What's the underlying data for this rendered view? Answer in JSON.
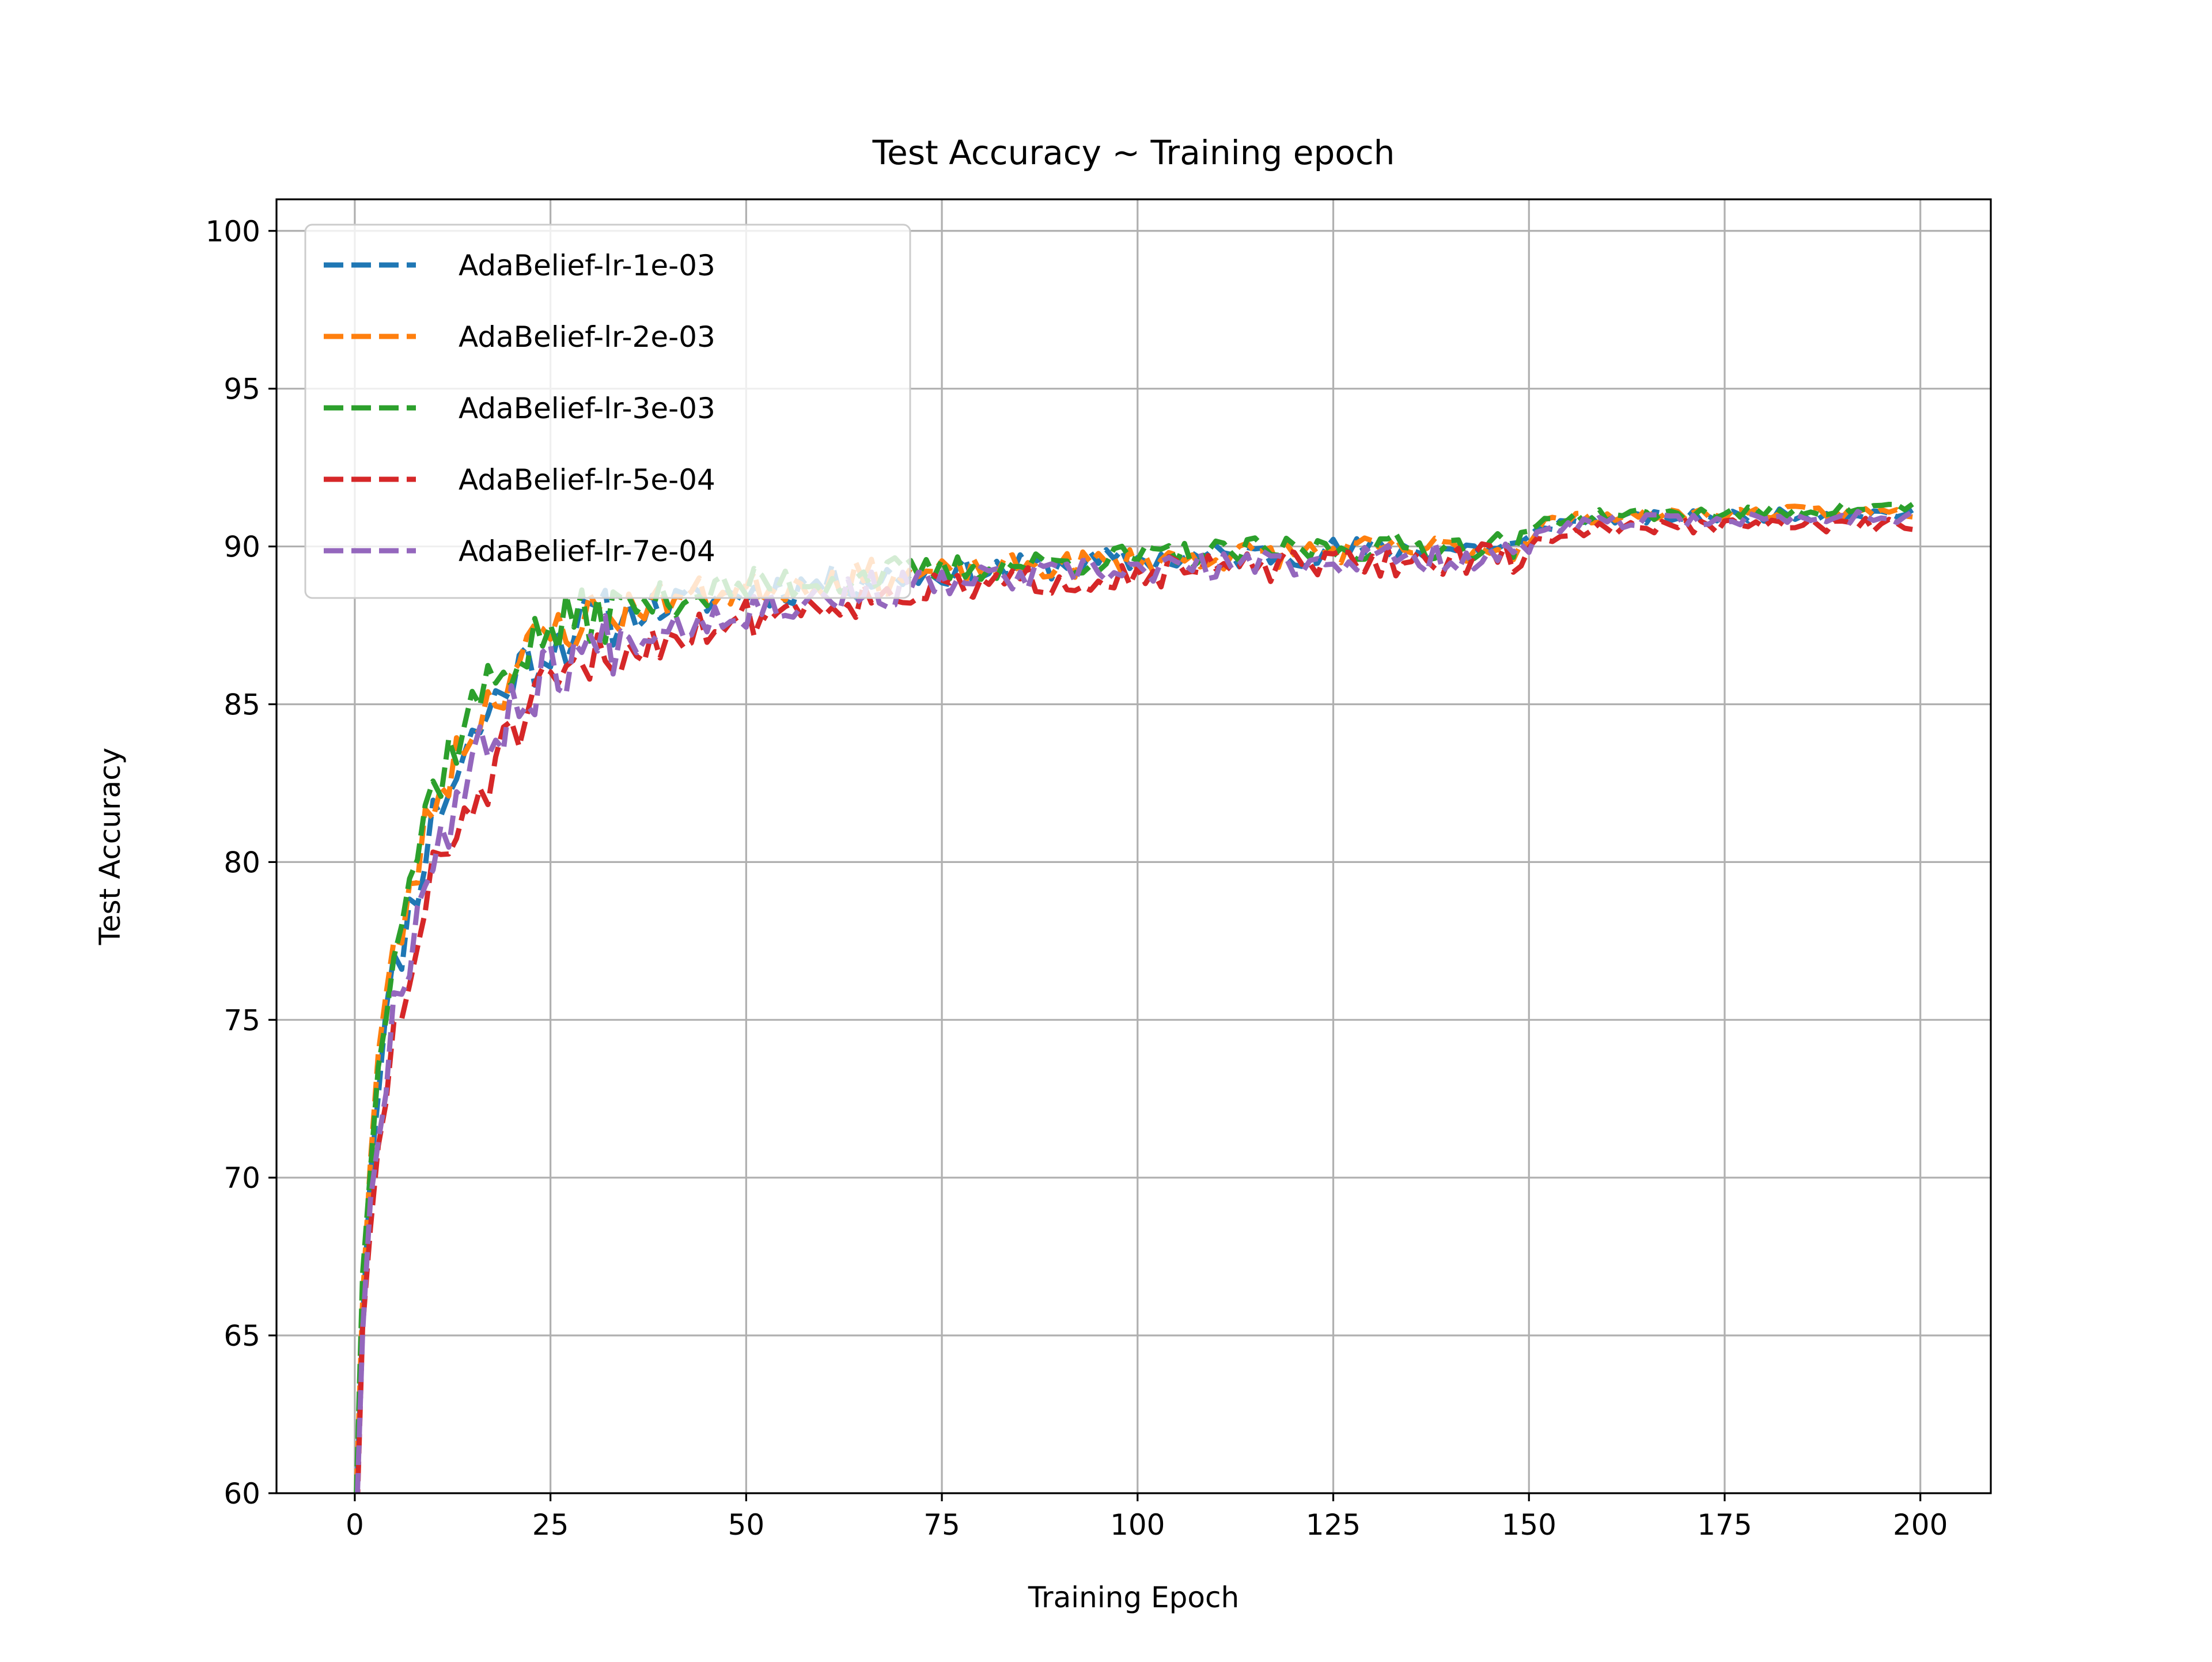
{
  "chart_data": {
    "type": "line",
    "title": "Test Accuracy ~ Training epoch",
    "xlabel": "Training Epoch",
    "ylabel": "Test Accuracy",
    "xlim": [
      -10,
      209
    ],
    "ylim": [
      60,
      101
    ],
    "xticks": [
      0,
      25,
      50,
      75,
      100,
      125,
      150,
      175,
      200
    ],
    "yticks": [
      60,
      65,
      70,
      75,
      80,
      85,
      90,
      95,
      100
    ],
    "xtick_labels": [
      "0",
      "25",
      "50",
      "75",
      "100",
      "125",
      "150",
      "175",
      "200"
    ],
    "ytick_labels": [
      "60",
      "65",
      "70",
      "75",
      "80",
      "85",
      "90",
      "95",
      "100"
    ],
    "grid": true,
    "line_style": "dashed",
    "legend_placement": "top-left",
    "x": {
      "start": 0,
      "end": 199,
      "step": 1
    },
    "series": [
      {
        "name": "AdaBelief-lr-1e-03",
        "color": "#1f77b4",
        "anchors": [
          [
            0,
            58.5
          ],
          [
            1,
            66.0
          ],
          [
            2,
            70.5
          ],
          [
            3,
            73.5
          ],
          [
            5,
            76.5
          ],
          [
            8,
            79.5
          ],
          [
            10,
            81.5
          ],
          [
            15,
            84.0
          ],
          [
            20,
            86.0
          ],
          [
            25,
            87.0
          ],
          [
            30,
            87.7
          ],
          [
            40,
            88.2
          ],
          [
            50,
            88.6
          ],
          [
            60,
            88.9
          ],
          [
            75,
            89.2
          ],
          [
            100,
            89.6
          ],
          [
            125,
            89.9
          ],
          [
            149,
            90.0
          ],
          [
            152,
            90.7
          ],
          [
            160,
            90.9
          ],
          [
            180,
            91.0
          ],
          [
            199,
            91.1
          ]
        ],
        "noise_amp": 0.55,
        "seed": 11
      },
      {
        "name": "AdaBelief-lr-2e-03",
        "color": "#ff7f0e",
        "anchors": [
          [
            0,
            59.0
          ],
          [
            1,
            66.5
          ],
          [
            2,
            70.5
          ],
          [
            3,
            74.0
          ],
          [
            5,
            77.0
          ],
          [
            8,
            80.0
          ],
          [
            10,
            82.0
          ],
          [
            15,
            84.5
          ],
          [
            20,
            86.2
          ],
          [
            25,
            87.3
          ],
          [
            30,
            87.9
          ],
          [
            40,
            88.4
          ],
          [
            50,
            88.7
          ],
          [
            60,
            89.0
          ],
          [
            75,
            89.2
          ],
          [
            100,
            89.6
          ],
          [
            125,
            89.9
          ],
          [
            149,
            90.0
          ],
          [
            152,
            90.8
          ],
          [
            160,
            91.0
          ],
          [
            180,
            91.1
          ],
          [
            199,
            91.1
          ]
        ],
        "noise_amp": 0.55,
        "seed": 23
      },
      {
        "name": "AdaBelief-lr-3e-03",
        "color": "#2ca02c",
        "anchors": [
          [
            0,
            58.8
          ],
          [
            1,
            66.8
          ],
          [
            2,
            71.0
          ],
          [
            3,
            74.5
          ],
          [
            5,
            77.5
          ],
          [
            8,
            80.5
          ],
          [
            10,
            82.5
          ],
          [
            15,
            85.0
          ],
          [
            20,
            86.5
          ],
          [
            25,
            87.4
          ],
          [
            30,
            87.9
          ],
          [
            40,
            88.4
          ],
          [
            50,
            88.8
          ],
          [
            60,
            89.0
          ],
          [
            75,
            89.3
          ],
          [
            100,
            89.7
          ],
          [
            125,
            90.0
          ],
          [
            149,
            90.1
          ],
          [
            152,
            90.9
          ],
          [
            160,
            91.0
          ],
          [
            180,
            91.1
          ],
          [
            199,
            91.3
          ]
        ],
        "noise_amp": 0.55,
        "seed": 37
      },
      {
        "name": "AdaBelief-lr-5e-04",
        "color": "#d62728",
        "anchors": [
          [
            0,
            57.5
          ],
          [
            1,
            64.5
          ],
          [
            2,
            68.0
          ],
          [
            3,
            71.0
          ],
          [
            5,
            74.5
          ],
          [
            8,
            77.5
          ],
          [
            10,
            79.5
          ],
          [
            15,
            82.0
          ],
          [
            20,
            84.0
          ],
          [
            25,
            85.5
          ],
          [
            30,
            86.3
          ],
          [
            40,
            87.2
          ],
          [
            50,
            87.8
          ],
          [
            60,
            88.3
          ],
          [
            75,
            88.7
          ],
          [
            100,
            89.2
          ],
          [
            125,
            89.5
          ],
          [
            149,
            89.7
          ],
          [
            152,
            90.3
          ],
          [
            160,
            90.6
          ],
          [
            180,
            90.7
          ],
          [
            199,
            90.7
          ]
        ],
        "noise_amp": 0.6,
        "seed": 51
      },
      {
        "name": "AdaBelief-lr-7e-04",
        "color": "#9467bd",
        "anchors": [
          [
            0,
            58.0
          ],
          [
            1,
            65.5
          ],
          [
            2,
            69.0
          ],
          [
            3,
            72.0
          ],
          [
            5,
            75.5
          ],
          [
            8,
            78.5
          ],
          [
            10,
            80.5
          ],
          [
            15,
            83.0
          ],
          [
            20,
            85.0
          ],
          [
            25,
            86.2
          ],
          [
            30,
            86.9
          ],
          [
            40,
            87.6
          ],
          [
            50,
            88.1
          ],
          [
            60,
            88.5
          ],
          [
            75,
            88.9
          ],
          [
            100,
            89.3
          ],
          [
            125,
            89.6
          ],
          [
            149,
            89.8
          ],
          [
            152,
            90.5
          ],
          [
            160,
            90.8
          ],
          [
            180,
            90.9
          ],
          [
            199,
            91.0
          ]
        ],
        "noise_amp": 0.6,
        "seed": 67
      }
    ]
  }
}
